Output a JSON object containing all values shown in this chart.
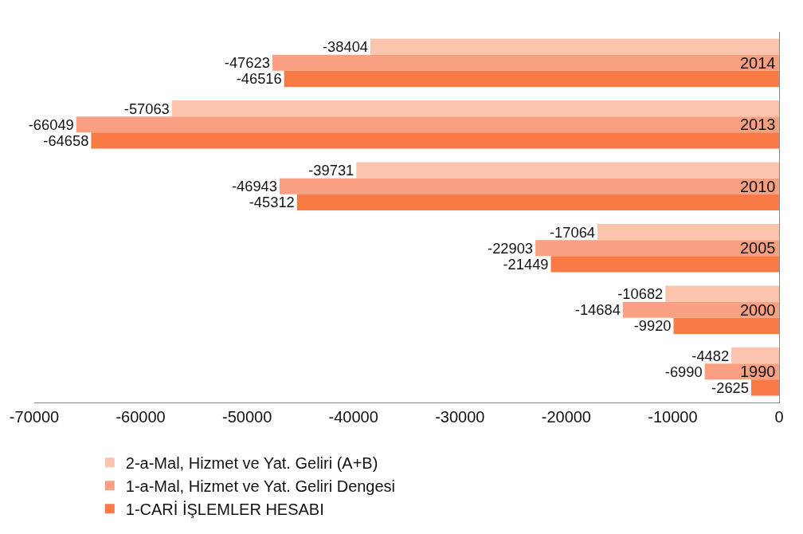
{
  "chart_data": {
    "type": "bar",
    "orientation": "horizontal",
    "categories": [
      "2014",
      "2013",
      "2010",
      "2005",
      "2000",
      "1990"
    ],
    "series": [
      {
        "name": "2-a-Mal, Hizmet ve Yat. Geliri (A+B)",
        "color": "#fcc3ad",
        "values": [
          -38404,
          -57063,
          -39731,
          -17064,
          -10682,
          -4482
        ]
      },
      {
        "name": "1-a-Mal, Hizmet ve Yat. Geliri Dengesi",
        "color": "#f9a083",
        "values": [
          -47623,
          -66049,
          -46943,
          -22903,
          -14684,
          -6990
        ]
      },
      {
        "name": "1-CARİ İŞLEMLER HESABI",
        "color": "#f97a45",
        "values": [
          -46516,
          -64658,
          -45312,
          -21449,
          -9920,
          -2625
        ]
      }
    ],
    "xlim": [
      -70000,
      0
    ],
    "xticks": [
      -70000,
      -60000,
      -50000,
      -40000,
      -30000,
      -20000,
      -10000,
      0
    ],
    "data_labels": true,
    "legend": "bottom"
  }
}
